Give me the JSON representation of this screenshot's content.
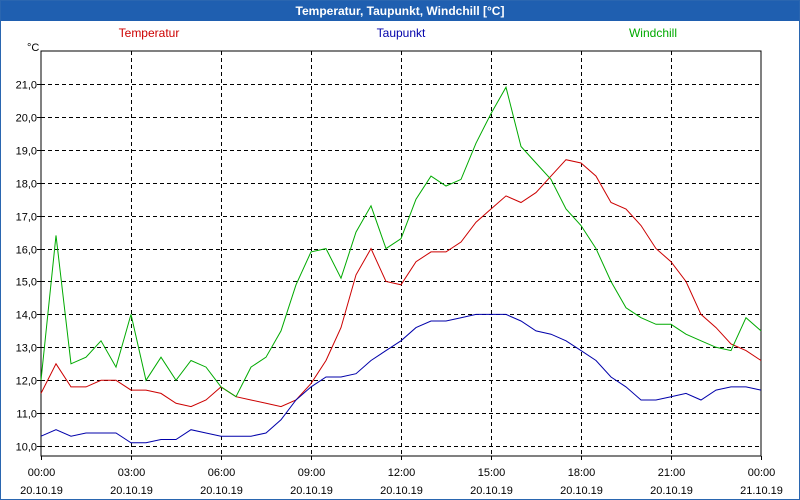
{
  "window": {
    "title": "Temperatur, Taupunkt, Windchill [°C]"
  },
  "colors": {
    "temperatur": "#cc0000",
    "taupunkt": "#0000aa",
    "windchill": "#00aa00",
    "title_bg": "#1f5fb0"
  },
  "chart_data": {
    "type": "line",
    "title": "Temperatur, Taupunkt, Windchill [°C]",
    "ylabel": "°C",
    "ylim": [
      9.7,
      22.0
    ],
    "y_ticks": [
      "10,0",
      "11,0",
      "12,0",
      "13,0",
      "14,0",
      "15,0",
      "16,0",
      "17,0",
      "18,0",
      "19,0",
      "20,0",
      "21,0"
    ],
    "xlim": [
      0,
      24
    ],
    "x_ticks": [
      {
        "time": "00:00",
        "date": "20.10.19"
      },
      {
        "time": "03:00",
        "date": "20.10.19"
      },
      {
        "time": "06:00",
        "date": "20.10.19"
      },
      {
        "time": "09:00",
        "date": "20.10.19"
      },
      {
        "time": "12:00",
        "date": "20.10.19"
      },
      {
        "time": "15:00",
        "date": "20.10.19"
      },
      {
        "time": "18:00",
        "date": "20.10.19"
      },
      {
        "time": "21:00",
        "date": "20.10.19"
      },
      {
        "time": "00:00",
        "date": "21.10.19"
      }
    ],
    "legend": [
      "Temperatur",
      "Taupunkt",
      "Windchill"
    ],
    "grid": true,
    "x": [
      0,
      0.5,
      1,
      1.5,
      2,
      2.5,
      3,
      3.5,
      4,
      4.5,
      5,
      5.5,
      6,
      6.5,
      7,
      7.5,
      8,
      8.5,
      9,
      9.5,
      10,
      10.5,
      11,
      11.5,
      12,
      12.5,
      13,
      13.5,
      14,
      14.5,
      15,
      15.5,
      16,
      16.5,
      17,
      17.5,
      18,
      18.5,
      19,
      19.5,
      20,
      20.5,
      21,
      21.5,
      22,
      22.5,
      23,
      23.5,
      24
    ],
    "series": [
      {
        "name": "Temperatur",
        "values": [
          11.6,
          12.5,
          11.8,
          11.8,
          12.0,
          12.0,
          11.7,
          11.7,
          11.6,
          11.3,
          11.2,
          11.4,
          11.8,
          11.5,
          11.4,
          11.3,
          11.2,
          11.4,
          11.9,
          12.6,
          13.6,
          15.2,
          16.0,
          15.0,
          14.9,
          15.6,
          15.9,
          15.9,
          16.2,
          16.8,
          17.2,
          17.6,
          17.4,
          17.7,
          18.2,
          18.7,
          18.6,
          18.2,
          17.4,
          17.2,
          16.7,
          16.0,
          15.6,
          15.0,
          14.0,
          13.6,
          13.1,
          12.9,
          12.6
        ]
      },
      {
        "name": "Taupunkt",
        "values": [
          10.3,
          10.5,
          10.3,
          10.4,
          10.4,
          10.4,
          10.1,
          10.1,
          10.2,
          10.2,
          10.5,
          10.4,
          10.3,
          10.3,
          10.3,
          10.4,
          10.8,
          11.4,
          11.8,
          12.1,
          12.1,
          12.2,
          12.6,
          12.9,
          13.2,
          13.6,
          13.8,
          13.8,
          13.9,
          14.0,
          14.0,
          14.0,
          13.8,
          13.5,
          13.4,
          13.2,
          12.9,
          12.6,
          12.1,
          11.8,
          11.4,
          11.4,
          11.5,
          11.6,
          11.4,
          11.7,
          11.8,
          11.8,
          11.7
        ]
      },
      {
        "name": "Windchill",
        "values": [
          12.0,
          16.4,
          12.5,
          12.7,
          13.2,
          12.4,
          14.0,
          12.0,
          12.7,
          12.0,
          12.6,
          12.4,
          11.8,
          11.5,
          12.4,
          12.7,
          13.5,
          14.9,
          15.9,
          16.0,
          15.1,
          16.5,
          17.3,
          16.0,
          16.3,
          17.5,
          18.2,
          17.9,
          18.1,
          19.2,
          20.1,
          20.9,
          19.1,
          18.6,
          18.1,
          17.2,
          16.7,
          16.0,
          15.0,
          14.2,
          13.9,
          13.7,
          13.7,
          13.4,
          13.2,
          13.0,
          12.9,
          13.9,
          13.5
        ]
      }
    ]
  }
}
